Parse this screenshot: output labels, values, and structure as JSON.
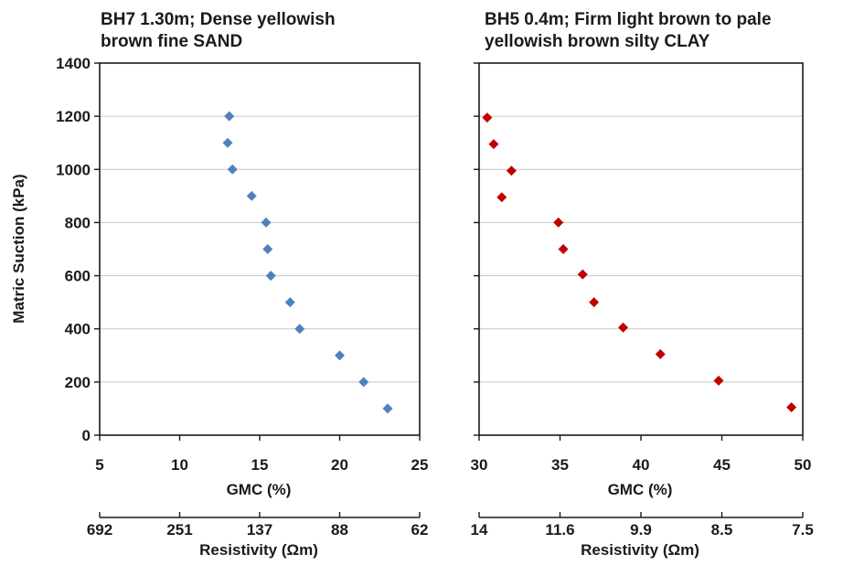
{
  "chart_data": [
    {
      "type": "scatter",
      "title_lines": [
        "BH7 1.30m; Dense yellowish",
        "brown fine SAND"
      ],
      "xlabel": "GMC (%)",
      "ylabel": "Matric Suction (kPa)",
      "xlim": [
        5,
        25
      ],
      "ylim": [
        0,
        1400
      ],
      "x_ticks": [
        "5",
        "10",
        "15",
        "20",
        "25"
      ],
      "y_ticks": [
        "0",
        "200",
        "400",
        "600",
        "800",
        "1000",
        "1200",
        "1400"
      ],
      "secondary_xlabel": "Resistivity (Ωm)",
      "secondary_x_ticks": [
        {
          "label": "692",
          "at_gmc": 5
        },
        {
          "label": "251",
          "at_gmc": 10
        },
        {
          "label": "137",
          "at_gmc": 15
        },
        {
          "label": "88",
          "at_gmc": 20
        },
        {
          "label": "62",
          "at_gmc": 25
        }
      ],
      "grid": "horizontal",
      "marker_color": "#4f81bd",
      "marker": "diamond",
      "series": [
        {
          "points": [
            {
              "x": 13.1,
              "y": 1200
            },
            {
              "x": 13.0,
              "y": 1100
            },
            {
              "x": 13.3,
              "y": 1000
            },
            {
              "x": 14.5,
              "y": 900
            },
            {
              "x": 15.4,
              "y": 800
            },
            {
              "x": 15.5,
              "y": 700
            },
            {
              "x": 15.7,
              "y": 600
            },
            {
              "x": 16.9,
              "y": 500
            },
            {
              "x": 17.5,
              "y": 400
            },
            {
              "x": 20.0,
              "y": 300
            },
            {
              "x": 21.5,
              "y": 200
            },
            {
              "x": 23.0,
              "y": 100
            }
          ]
        }
      ]
    },
    {
      "type": "scatter",
      "title_lines": [
        "BH5 0.4m; Firm light brown to pale",
        "yellowish brown silty CLAY"
      ],
      "xlabel": "GMC (%)",
      "ylabel": "",
      "xlim": [
        30,
        50
      ],
      "ylim": [
        0,
        1400
      ],
      "x_ticks": [
        "30",
        "35",
        "40",
        "45",
        "50"
      ],
      "y_ticks": [],
      "secondary_xlabel": "Resistivity (Ωm)",
      "secondary_x_ticks": [
        {
          "label": "14",
          "at_gmc": 30
        },
        {
          "label": "11.6",
          "at_gmc": 35
        },
        {
          "label": "9.9",
          "at_gmc": 40
        },
        {
          "label": "8.5",
          "at_gmc": 45
        },
        {
          "label": "7.5",
          "at_gmc": 50
        }
      ],
      "grid": "horizontal",
      "marker_color": "#c00000",
      "marker": "diamond",
      "series": [
        {
          "points": [
            {
              "x": 30.5,
              "y": 1195
            },
            {
              "x": 30.9,
              "y": 1095
            },
            {
              "x": 32.0,
              "y": 995
            },
            {
              "x": 31.4,
              "y": 895
            },
            {
              "x": 34.9,
              "y": 800
            },
            {
              "x": 35.2,
              "y": 700
            },
            {
              "x": 36.4,
              "y": 605
            },
            {
              "x": 37.1,
              "y": 500
            },
            {
              "x": 38.9,
              "y": 405
            },
            {
              "x": 41.2,
              "y": 305
            },
            {
              "x": 44.8,
              "y": 205
            },
            {
              "x": 49.3,
              "y": 105
            }
          ]
        }
      ]
    }
  ]
}
